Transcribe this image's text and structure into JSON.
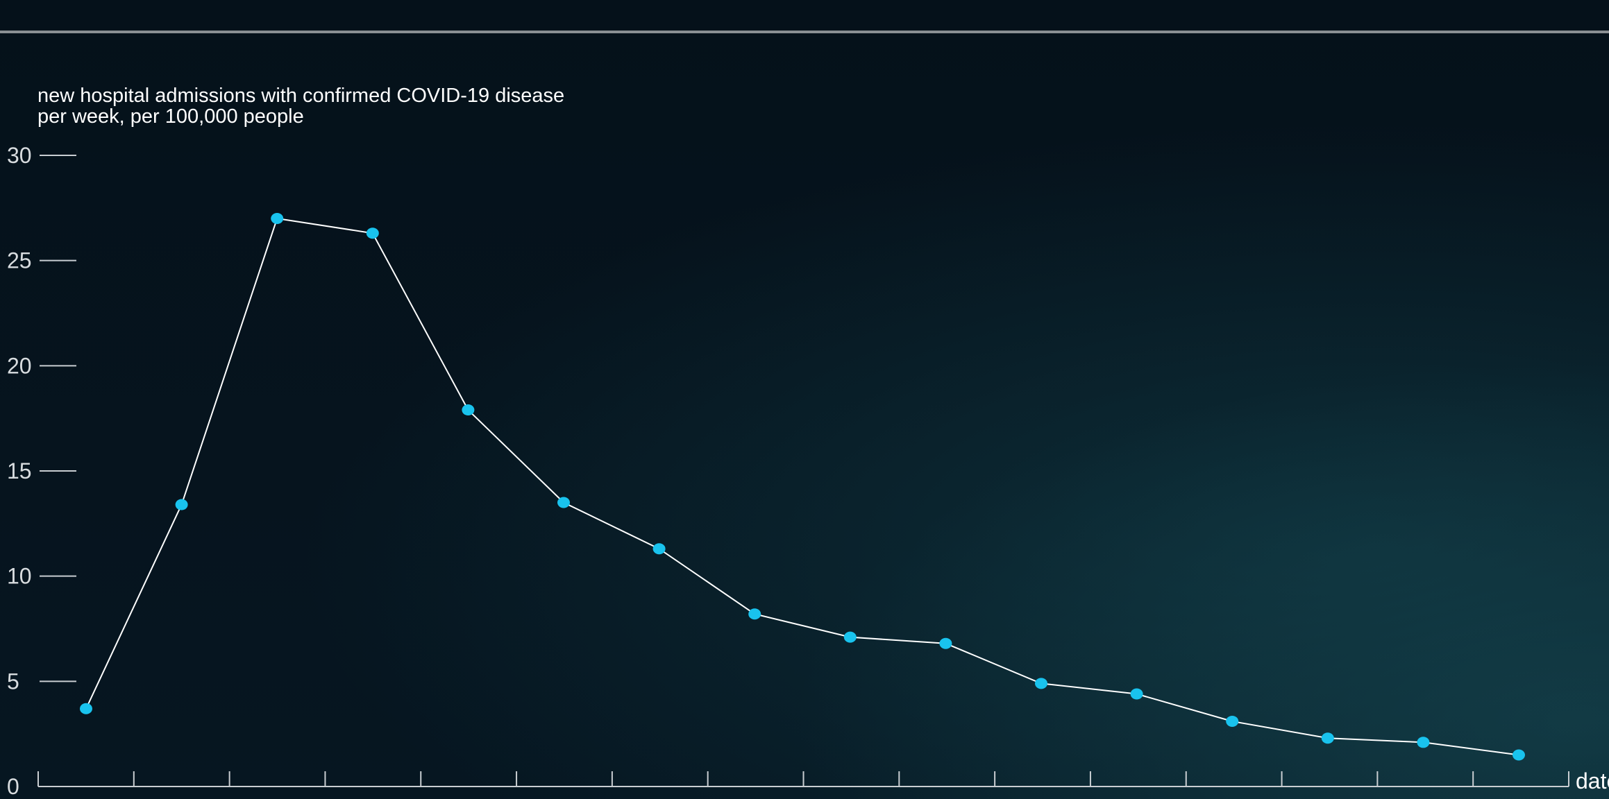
{
  "header": {
    "caption": ""
  },
  "chart_data": {
    "type": "line",
    "ylabel_lines": [
      "new hospital admissions with confirmed COVID-19 disease",
      "per week, per 100,000 people"
    ],
    "xlabel": "date",
    "ylim": [
      0,
      30
    ],
    "y_ticks": [
      0,
      5,
      10,
      15,
      20,
      25,
      30
    ],
    "x": [
      1,
      2,
      3,
      4,
      5,
      6,
      7,
      8,
      9,
      10,
      11,
      12,
      13,
      14,
      15,
      16
    ],
    "series": [
      {
        "values": [
          3.7,
          13.4,
          27.0,
          26.3,
          17.9,
          13.5,
          11.3,
          8.2,
          7.1,
          6.8,
          4.9,
          4.4,
          3.1,
          2.3,
          2.1,
          1.5
        ]
      }
    ],
    "grid": false,
    "line_color": "#ffffff",
    "marker_color": "#19c3ee"
  }
}
